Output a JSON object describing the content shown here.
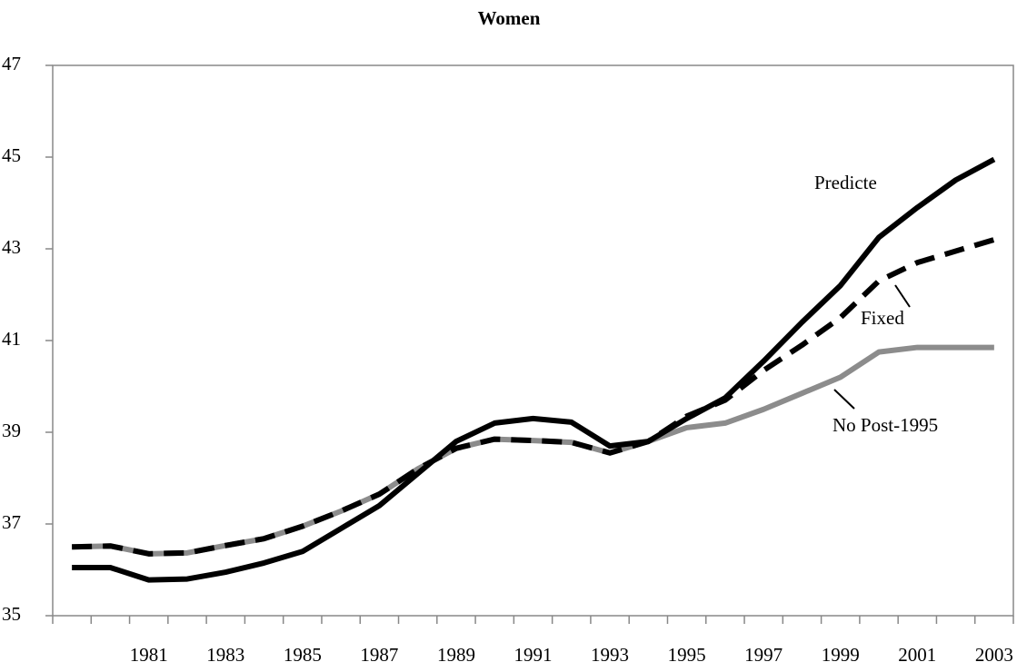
{
  "chart_data": {
    "type": "line",
    "title": "Women",
    "categories": [
      null,
      null,
      "1981",
      null,
      "1983",
      null,
      "1985",
      null,
      "1987",
      null,
      "1989",
      null,
      "1991",
      null,
      "1993",
      null,
      "1995",
      null,
      "1997",
      null,
      "1999",
      null,
      "2001",
      null,
      "2003"
    ],
    "series": [
      {
        "name": "No Post-1995",
        "color": "#8c8c8c",
        "line_style": "solid",
        "values": [
          36.5,
          36.52,
          36.35,
          36.37,
          36.53,
          36.68,
          36.95,
          37.28,
          37.65,
          38.2,
          38.65,
          38.85,
          38.82,
          38.78,
          38.55,
          38.8,
          39.1,
          39.2,
          39.5,
          39.85,
          40.2,
          40.75,
          40.85,
          40.85,
          40.85
        ]
      },
      {
        "name": "Fixed",
        "color": "#000000",
        "line_style": "dashed",
        "values": [
          36.5,
          36.52,
          36.35,
          36.37,
          36.53,
          36.68,
          36.95,
          37.28,
          37.65,
          38.2,
          38.65,
          38.85,
          38.82,
          38.78,
          38.55,
          38.8,
          39.35,
          39.7,
          40.35,
          40.9,
          41.5,
          42.3,
          42.7,
          42.95,
          43.2
        ]
      },
      {
        "name": "Predicte",
        "color": "#000000",
        "line_style": "solid",
        "values": [
          36.05,
          36.05,
          35.78,
          35.8,
          35.95,
          36.15,
          36.4,
          36.9,
          37.4,
          38.1,
          38.8,
          39.2,
          39.3,
          39.22,
          38.7,
          38.8,
          39.3,
          39.75,
          40.55,
          41.4,
          42.2,
          43.25,
          43.9,
          44.5,
          44.95
        ]
      }
    ],
    "ylim": [
      35,
      47
    ],
    "yticks": [
      35,
      37,
      39,
      41,
      43,
      45,
      47
    ],
    "grid": false
  }
}
